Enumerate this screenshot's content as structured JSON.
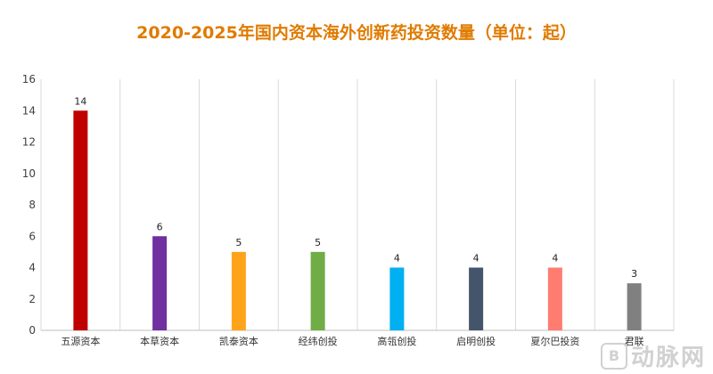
{
  "chart_data": {
    "type": "bar",
    "title": "2020-2025年国内资本海外创新药投资数量（单位：起）",
    "categories": [
      "五源资本",
      "本草资本",
      "凯泰资本",
      "经纬创投",
      "高瓴创投",
      "启明创投",
      "夏尔巴投资",
      "君联"
    ],
    "values": [
      14,
      6,
      5,
      5,
      4,
      4,
      4,
      3
    ],
    "colors": [
      "#c00000",
      "#7030a0",
      "#ffa31a",
      "#70ad47",
      "#00b0f0",
      "#44546a",
      "#ff7c70",
      "#808080"
    ],
    "ylim": [
      0,
      16
    ],
    "yticks": [
      0,
      2,
      4,
      6,
      8,
      10,
      12,
      14,
      16
    ],
    "xlabel": "",
    "ylabel": "",
    "grid": "vertical separators",
    "legend": "none"
  },
  "watermark": {
    "text": "动脉网",
    "logo": "B"
  }
}
